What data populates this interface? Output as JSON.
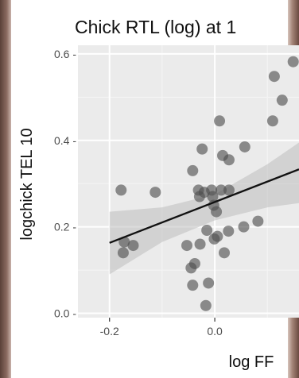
{
  "chart_data": {
    "type": "scatter",
    "title": "Chick RTL (log) at 1",
    "xlabel": "log FF",
    "ylabel": "logchick TEL 10",
    "xlim": [
      -0.26,
      0.16
    ],
    "ylim": [
      -0.01,
      0.62
    ],
    "x_ticks": [
      -0.2,
      0.0
    ],
    "x_tick_labels": [
      "-0.2",
      "0.0"
    ],
    "y_ticks": [
      0.0,
      0.2,
      0.4,
      0.6
    ],
    "y_tick_labels": [
      "0.0 -",
      "0.2 -",
      "0.4 -",
      "0.6 -"
    ],
    "grid": true,
    "background": "#ebebeb",
    "point_color": "#4d4d4d",
    "trend_line": {
      "x": [
        -0.2,
        0.16
      ],
      "y": [
        0.163,
        0.333
      ]
    },
    "confidence_band": {
      "x": [
        -0.2,
        -0.1,
        0.0,
        0.1,
        0.16
      ],
      "lower": [
        0.09,
        0.165,
        0.215,
        0.245,
        0.255
      ],
      "upper": [
        0.235,
        0.245,
        0.275,
        0.345,
        0.395
      ]
    },
    "series": [
      {
        "values": [
          [
            -0.178,
            0.285
          ],
          [
            -0.113,
            0.28
          ],
          [
            -0.172,
            0.165
          ],
          [
            -0.155,
            0.157
          ],
          [
            -0.174,
            0.14
          ],
          [
            -0.053,
            0.157
          ],
          [
            -0.042,
            0.33
          ],
          [
            -0.031,
            0.285
          ],
          [
            -0.029,
            0.27
          ],
          [
            -0.02,
            0.28
          ],
          [
            -0.006,
            0.285
          ],
          [
            -0.004,
            0.27
          ],
          [
            0.012,
            0.285
          ],
          [
            0.027,
            0.285
          ],
          [
            -0.024,
            0.38
          ],
          [
            0.009,
            0.445
          ],
          [
            0.015,
            0.365
          ],
          [
            0.027,
            0.355
          ],
          [
            0.057,
            0.385
          ],
          [
            -0.002,
            0.25
          ],
          [
            0.003,
            0.235
          ],
          [
            0.026,
            0.19
          ],
          [
            0.005,
            0.178
          ],
          [
            -0.001,
            0.172
          ],
          [
            -0.015,
            0.192
          ],
          [
            -0.028,
            0.16
          ],
          [
            -0.038,
            0.115
          ],
          [
            -0.045,
            0.105
          ],
          [
            -0.042,
            0.065
          ],
          [
            -0.012,
            0.07
          ],
          [
            -0.017,
            0.018
          ],
          [
            0.018,
            0.14
          ],
          [
            0.055,
            0.2
          ],
          [
            0.082,
            0.213
          ],
          [
            0.11,
            0.445
          ],
          [
            0.128,
            0.493
          ],
          [
            0.113,
            0.548
          ],
          [
            0.149,
            0.582
          ]
        ]
      }
    ]
  }
}
